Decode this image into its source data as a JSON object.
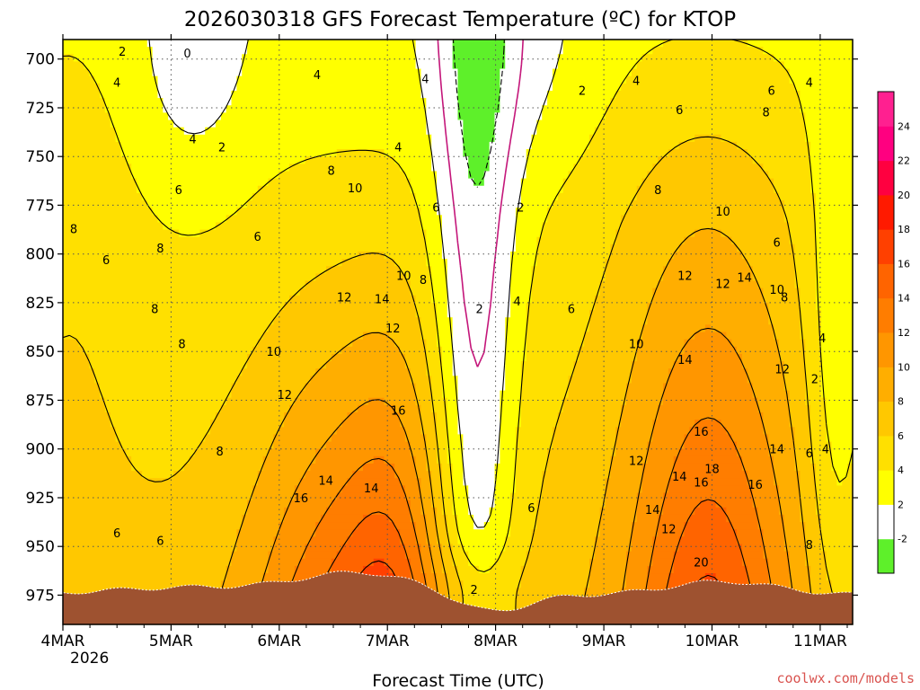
{
  "chart_data": {
    "type": "heatmap",
    "title": "2026030318 GFS Forecast Temperature (ºC) for KTOP",
    "xlabel": "Forecast Time (UTC)",
    "ylabel": "",
    "credit": "coolwx.com/models",
    "x_ticks": [
      "4MAR",
      "5MAR",
      "6MAR",
      "7MAR",
      "8MAR",
      "9MAR",
      "10MAR",
      "11MAR"
    ],
    "x_year": "2026",
    "x_range": [
      0,
      7.3
    ],
    "y_ticks": [
      700,
      725,
      750,
      775,
      800,
      825,
      850,
      875,
      900,
      925,
      950,
      975
    ],
    "y_range": [
      690,
      990
    ],
    "colorbar": {
      "levels": [
        -2,
        2,
        4,
        6,
        8,
        10,
        12,
        14,
        16,
        18,
        20,
        22,
        24
      ],
      "labels": [
        "-2",
        "2",
        "4",
        "6",
        "8",
        "10",
        "12",
        "14",
        "16",
        "18",
        "20",
        "22",
        "24"
      ],
      "colors": [
        "#5ef02a",
        "#ffffff",
        "#ffff00",
        "#ffe000",
        "#ffc800",
        "#ffae00",
        "#ff9600",
        "#ff7d00",
        "#ff6400",
        "#ff4000",
        "#ff1a00",
        "#ff0040",
        "#ff0080",
        "#ff2090"
      ]
    },
    "freezing_color": "#c4167a",
    "terrain_color": "#9e5230",
    "contour_labels": [
      {
        "t": 0.55,
        "p": 696,
        "v": "2"
      },
      {
        "t": 1.15,
        "p": 697,
        "v": "0"
      },
      {
        "t": 0.5,
        "p": 712,
        "v": "4"
      },
      {
        "t": 2.35,
        "p": 708,
        "v": "4"
      },
      {
        "t": 3.35,
        "p": 710,
        "v": "4"
      },
      {
        "t": 4.8,
        "p": 716,
        "v": "2"
      },
      {
        "t": 5.3,
        "p": 711,
        "v": "4"
      },
      {
        "t": 6.55,
        "p": 716,
        "v": "6"
      },
      {
        "t": 6.9,
        "p": 712,
        "v": "4"
      },
      {
        "t": 5.7,
        "p": 726,
        "v": "6"
      },
      {
        "t": 6.5,
        "p": 727,
        "v": "8"
      },
      {
        "t": 1.2,
        "p": 741,
        "v": "4"
      },
      {
        "t": 1.47,
        "p": 745,
        "v": "2"
      },
      {
        "t": 3.1,
        "p": 745,
        "v": "4"
      },
      {
        "t": 2.48,
        "p": 757,
        "v": "8"
      },
      {
        "t": 2.7,
        "p": 766,
        "v": "10"
      },
      {
        "t": 1.07,
        "p": 767,
        "v": "6"
      },
      {
        "t": 3.45,
        "p": 776,
        "v": "6"
      },
      {
        "t": 4.23,
        "p": 776,
        "v": "2"
      },
      {
        "t": 5.5,
        "p": 767,
        "v": "8"
      },
      {
        "t": 6.1,
        "p": 778,
        "v": "10"
      },
      {
        "t": 0.1,
        "p": 787,
        "v": "8"
      },
      {
        "t": 1.8,
        "p": 791,
        "v": "6"
      },
      {
        "t": 6.6,
        "p": 794,
        "v": "6"
      },
      {
        "t": 0.9,
        "p": 797,
        "v": "8"
      },
      {
        "t": 0.4,
        "p": 803,
        "v": "6"
      },
      {
        "t": 3.15,
        "p": 811,
        "v": "10"
      },
      {
        "t": 3.33,
        "p": 813,
        "v": "8"
      },
      {
        "t": 5.75,
        "p": 811,
        "v": "12"
      },
      {
        "t": 6.1,
        "p": 815,
        "v": "12"
      },
      {
        "t": 6.3,
        "p": 812,
        "v": "14"
      },
      {
        "t": 6.6,
        "p": 818,
        "v": "10"
      },
      {
        "t": 6.67,
        "p": 822,
        "v": "8"
      },
      {
        "t": 2.6,
        "p": 822,
        "v": "12"
      },
      {
        "t": 2.95,
        "p": 823,
        "v": "14"
      },
      {
        "t": 4.2,
        "p": 824,
        "v": "4"
      },
      {
        "t": 0.85,
        "p": 828,
        "v": "8"
      },
      {
        "t": 3.85,
        "p": 828,
        "v": "2"
      },
      {
        "t": 4.7,
        "p": 828,
        "v": "6"
      },
      {
        "t": 3.05,
        "p": 838,
        "v": "12"
      },
      {
        "t": 7.02,
        "p": 843,
        "v": "4"
      },
      {
        "t": 1.1,
        "p": 846,
        "v": "8"
      },
      {
        "t": 5.3,
        "p": 846,
        "v": "10"
      },
      {
        "t": 1.95,
        "p": 850,
        "v": "10"
      },
      {
        "t": 5.75,
        "p": 854,
        "v": "14"
      },
      {
        "t": 6.65,
        "p": 859,
        "v": "12"
      },
      {
        "t": 6.95,
        "p": 864,
        "v": "2"
      },
      {
        "t": 2.05,
        "p": 872,
        "v": "12"
      },
      {
        "t": 3.1,
        "p": 880,
        "v": "16"
      },
      {
        "t": 5.9,
        "p": 891,
        "v": "16"
      },
      {
        "t": 1.45,
        "p": 901,
        "v": "8"
      },
      {
        "t": 6.6,
        "p": 900,
        "v": "14"
      },
      {
        "t": 6.9,
        "p": 902,
        "v": "6"
      },
      {
        "t": 7.05,
        "p": 900,
        "v": "4"
      },
      {
        "t": 5.3,
        "p": 906,
        "v": "12"
      },
      {
        "t": 6.0,
        "p": 910,
        "v": "18"
      },
      {
        "t": 5.7,
        "p": 914,
        "v": "14"
      },
      {
        "t": 2.43,
        "p": 916,
        "v": "14"
      },
      {
        "t": 5.9,
        "p": 917,
        "v": "16"
      },
      {
        "t": 6.4,
        "p": 918,
        "v": "16"
      },
      {
        "t": 2.85,
        "p": 920,
        "v": "14"
      },
      {
        "t": 2.2,
        "p": 925,
        "v": "16"
      },
      {
        "t": 4.33,
        "p": 930,
        "v": "6"
      },
      {
        "t": 5.45,
        "p": 931,
        "v": "14"
      },
      {
        "t": 0.5,
        "p": 943,
        "v": "6"
      },
      {
        "t": 5.6,
        "p": 941,
        "v": "12"
      },
      {
        "t": 0.9,
        "p": 947,
        "v": "6"
      },
      {
        "t": 6.9,
        "p": 949,
        "v": "8"
      },
      {
        "t": 5.9,
        "p": 958,
        "v": "20"
      },
      {
        "t": 3.8,
        "p": 972,
        "v": "2"
      }
    ]
  }
}
